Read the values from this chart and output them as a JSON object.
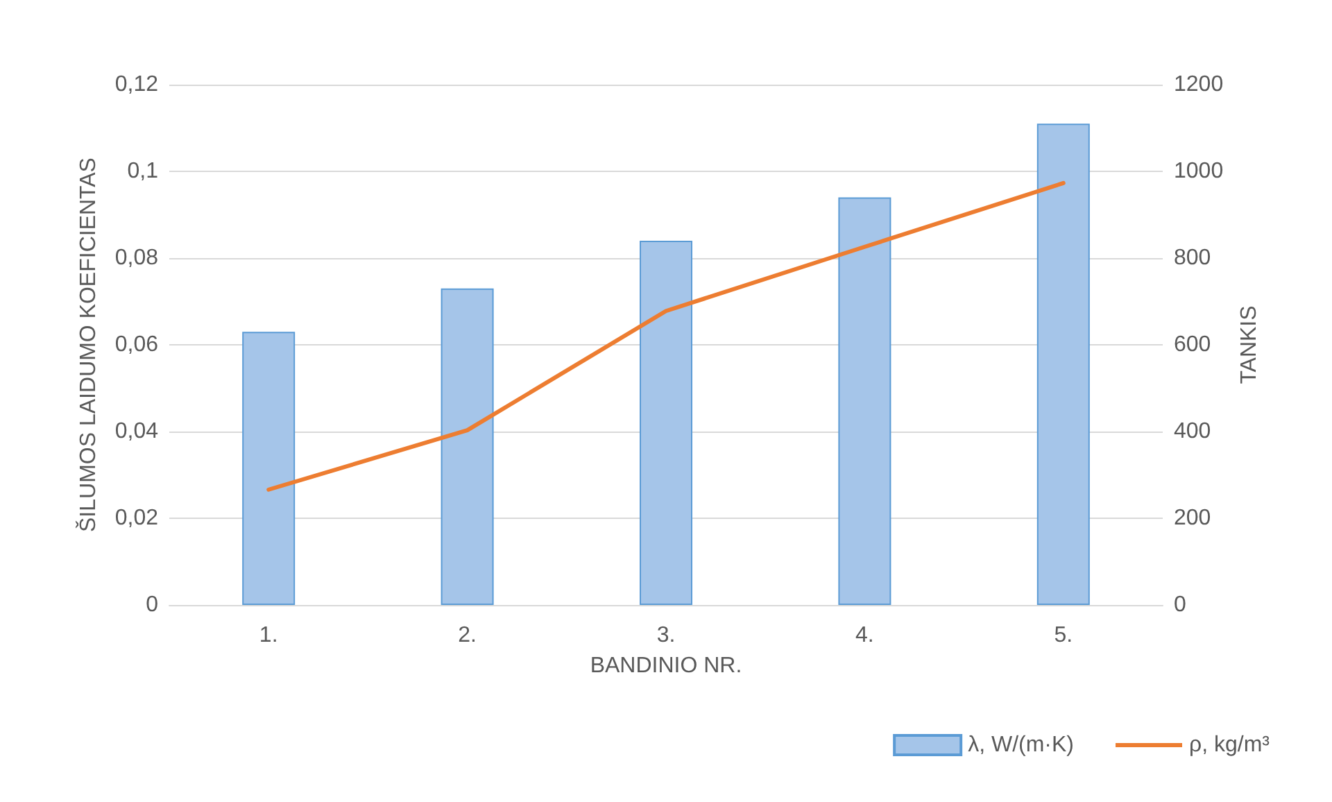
{
  "chart_data": {
    "type": "bar",
    "xlabel": "BANDINIO NR.",
    "ylabel": "ŠILUMOS LAIDUMO KOEFICIENTAS",
    "y2label": "TANKIS",
    "categories": [
      "1.",
      "2.",
      "3.",
      "4.",
      "5."
    ],
    "series": [
      {
        "name": "λ, W/(m·K)",
        "color": "#a5c5e9",
        "values": [
          0.063,
          0.073,
          0.084,
          0.094,
          0.111
        ]
      },
      {
        "name": "ρ, kg/m³",
        "type": "line",
        "axis": "y2",
        "color": "#ed7d31",
        "values": [
          266,
          403,
          678,
          826,
          973
        ]
      }
    ],
    "ylim": [
      0,
      0.12
    ],
    "yticks": [
      0,
      {
        "value": 0.02,
        "label": "0,02"
      },
      {
        "value": 0.04,
        "label": "0,04"
      },
      {
        "value": 0.06,
        "label": "0,06"
      },
      {
        "value": 0.08,
        "label": "0,08"
      },
      {
        "value": 0.1,
        "label": "0,1"
      },
      {
        "value": 0.12,
        "label": "0,12"
      }
    ],
    "y2lim": [
      0,
      1200
    ],
    "y2ticks": [
      0,
      200,
      400,
      600,
      800,
      1000,
      1200
    ],
    "grid": "y",
    "legend": "bottom right",
    "marker": "none",
    "line_style": "solid"
  }
}
